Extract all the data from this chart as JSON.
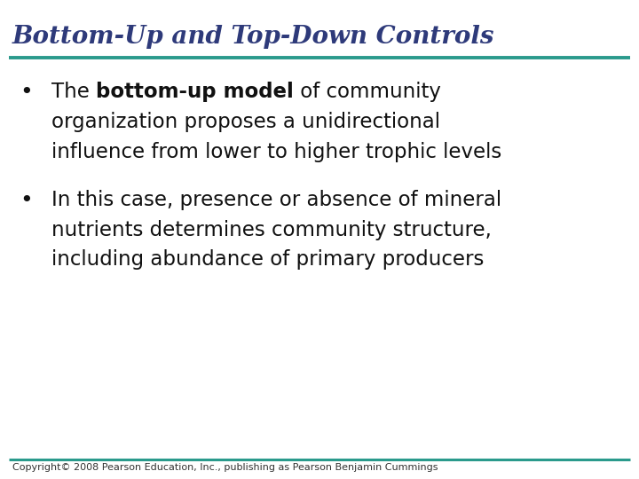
{
  "title": "Bottom-Up and Top-Down Controls",
  "title_color": "#2E3A7A",
  "title_fontsize": 20,
  "line_color": "#2A9A8C",
  "background_color": "#FFFFFF",
  "bullet_color": "#111111",
  "bullet_fontsize": 16.5,
  "bullet_symbol_fontsize": 18,
  "copyright": "Copyright© 2008 Pearson Education, Inc., publishing as Pearson Benjamin Cummings",
  "copyright_fontsize": 8,
  "copyright_color": "#333333",
  "b1_pre": "The ",
  "b1_bold": "bottom-up model",
  "b1_post": " of community",
  "b1_line2": "organization proposes a unidirectional",
  "b1_line3": "influence from lower to higher trophic levels",
  "b2_line1": "In this case, presence or absence of mineral",
  "b2_line2": "nutrients determines community structure,",
  "b2_line3": "including abundance of primary producers"
}
